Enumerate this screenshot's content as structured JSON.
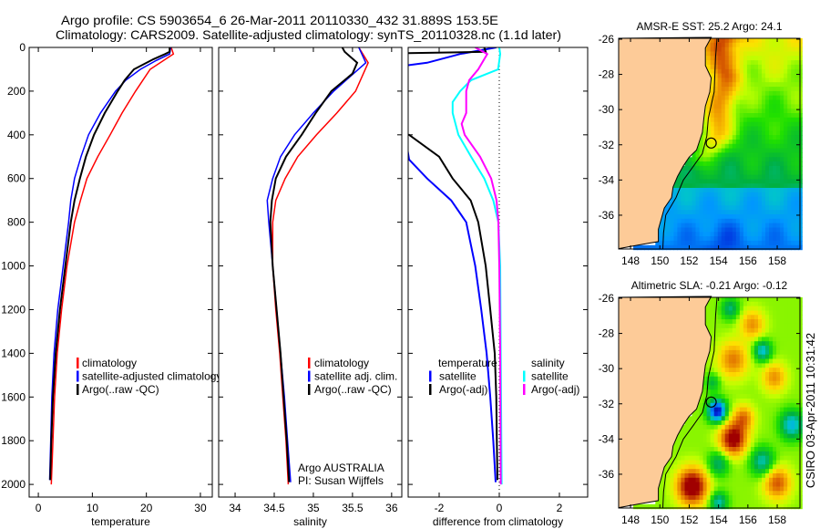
{
  "title": {
    "line1": "Argo profile: CS 5903654_6 26-Mar-2011 20110330_432 31.889S 153.5E",
    "line2": "Climatology: CARS2009. Satellite-adjusted climatology: synTS_20110328.nc (1.1d later)"
  },
  "colors": {
    "climatology": "#ff0000",
    "satellite": "#0000ff",
    "argo": "#000000",
    "salinity_satellite": "#00ffff",
    "salinity_argo": "#ff00ff",
    "land": "#fdcb98",
    "zero_line": "#000000"
  },
  "chart_data": [
    {
      "type": "line",
      "title": "",
      "xlabel": "temperature",
      "ylabel": "",
      "xlim": [
        -1.7,
        32.2
      ],
      "ylim": [
        0,
        2058
      ],
      "y_reversed": true,
      "xticks": [
        "0",
        "10",
        "20",
        "30"
      ],
      "yticks": [
        "0",
        "200",
        "400",
        "600",
        "800",
        "1000",
        "1200",
        "1400",
        "1600",
        "1800",
        "2000"
      ],
      "legend_position": "lower-middle",
      "series": [
        {
          "name": "climatology",
          "color": "#ff0000",
          "depth": [
            0,
            30,
            100,
            200,
            300,
            400,
            500,
            600,
            700,
            800,
            1000,
            1200,
            1400,
            1600,
            1800,
            2000
          ],
          "values": [
            24.6,
            25.0,
            20.7,
            18.0,
            15.5,
            13.3,
            11.0,
            9.0,
            7.8,
            6.7,
            5.3,
            4.3,
            3.5,
            3.0,
            2.7,
            2.4
          ]
        },
        {
          "name": "satellite-adjusted climatology",
          "color": "#0000ff",
          "depth": [
            0,
            30,
            60,
            100,
            150,
            200,
            300,
            400,
            500,
            600,
            700,
            800,
            1000,
            1200,
            1400,
            1600,
            1800,
            1980
          ],
          "values": [
            24.5,
            24.3,
            21.8,
            18.9,
            16.2,
            14.3,
            11.5,
            9.3,
            7.9,
            6.7,
            6.0,
            5.6,
            4.6,
            3.6,
            2.9,
            2.5,
            2.3,
            2.1
          ]
        },
        {
          "name": "Argo(..raw -QC)",
          "color": "#000000",
          "depth": [
            0,
            20,
            30,
            54,
            100,
            150,
            200,
            300,
            400,
            500,
            600,
            700,
            800,
            1000,
            1200,
            1400,
            1600,
            1800,
            1980
          ],
          "values": [
            24.3,
            24.3,
            23.5,
            21.3,
            17.7,
            16.0,
            14.7,
            12.3,
            10.3,
            8.8,
            7.7,
            6.7,
            6.0,
            5.0,
            4.0,
            3.2,
            2.7,
            2.4,
            2.2
          ]
        }
      ]
    },
    {
      "type": "line",
      "title": "",
      "xlabel": "salinity",
      "ylabel": "",
      "xlim": [
        33.79,
        36.13
      ],
      "ylim": [
        0,
        2058
      ],
      "y_reversed": true,
      "xticks": [
        "34",
        "34.5",
        "35",
        "35.5",
        "36"
      ],
      "legend_position": "lower-right",
      "series": [
        {
          "name": "climatology",
          "color": "#ff0000",
          "depth": [
            0,
            70,
            200,
            300,
            400,
            500,
            600,
            700,
            800,
            1000,
            1200,
            1400,
            1600,
            1800,
            2000
          ],
          "values": [
            35.58,
            35.7,
            35.54,
            35.3,
            35.04,
            34.8,
            34.64,
            34.52,
            34.48,
            34.48,
            34.52,
            34.57,
            34.61,
            34.65,
            34.68
          ]
        },
        {
          "name": "satellite adj. clim.",
          "color": "#0000ff",
          "depth": [
            0,
            70,
            200,
            300,
            400,
            500,
            600,
            700,
            800,
            1000,
            1200,
            1400,
            1600,
            1800,
            1990
          ],
          "values": [
            35.58,
            35.67,
            35.26,
            35.0,
            34.76,
            34.58,
            34.48,
            34.41,
            34.43,
            34.48,
            34.53,
            34.58,
            34.63,
            34.67,
            34.71
          ]
        },
        {
          "name": "Argo(..raw -QC)",
          "color": "#000000",
          "depth": [
            0,
            20,
            70,
            120,
            200,
            300,
            400,
            500,
            600,
            700,
            800,
            1000,
            1200,
            1400,
            1600,
            1800,
            1990
          ],
          "values": [
            35.37,
            35.4,
            35.56,
            35.5,
            35.23,
            35.03,
            34.85,
            34.65,
            34.52,
            34.47,
            34.45,
            34.48,
            34.53,
            34.58,
            34.62,
            34.66,
            34.69
          ]
        }
      ],
      "annotation": {
        "line1": "Argo AUSTRALIA",
        "line2": "PI: Susan Wijffels"
      }
    },
    {
      "type": "line",
      "title": "",
      "xlabel": "difference from climatology",
      "ylabel": "",
      "xlim": [
        -3.03,
        2.94
      ],
      "ylim": [
        0,
        2058
      ],
      "y_reversed": true,
      "xticks": [
        "-2",
        "0",
        "2"
      ],
      "zero_line": true,
      "legend_position": "lower-middle",
      "legend_headers": {
        "temperature": "temperature",
        "salinity": "salinity"
      },
      "series": [
        {
          "group": "temperature",
          "name": "satellite",
          "color": "#0000ff",
          "depth": [
            0,
            30,
            70,
            90,
            513,
            600,
            700,
            800,
            1000,
            1200,
            1400,
            1600,
            1800,
            1990
          ],
          "values": [
            -0.1,
            -1.3,
            -2.4,
            -3.5,
            -3.0,
            -2.4,
            -1.6,
            -1.1,
            -0.8,
            -0.6,
            -0.42,
            -0.3,
            -0.2,
            -0.12
          ]
        },
        {
          "group": "temperature",
          "name": "Argo(-adj)",
          "color": "#000000",
          "depth": [
            0,
            20,
            27,
            395,
            400,
            500,
            600,
            700,
            800,
            1000,
            1200,
            1400,
            1600,
            1800,
            1980
          ],
          "values": [
            -0.5,
            -0.45,
            -3.5,
            -3.5,
            -3.0,
            -2.0,
            -1.55,
            -0.95,
            -0.7,
            -0.45,
            -0.3,
            -0.15,
            -0.1,
            -0.08,
            -0.06
          ]
        },
        {
          "group": "salinity",
          "name": "satellite",
          "color": "#00ffff",
          "depth": [
            0,
            30,
            100,
            150,
            200,
            250,
            300,
            400,
            500,
            600,
            700,
            800,
            1000,
            1400,
            2000
          ],
          "values": [
            0,
            0.03,
            -0.04,
            -0.94,
            -1.3,
            -1.55,
            -1.55,
            -1.36,
            -0.94,
            -0.5,
            -0.2,
            -0.03,
            0.03,
            0.05,
            0.08
          ]
        },
        {
          "group": "salinity",
          "name": "Argo(-adj)",
          "color": "#ff00ff",
          "depth": [
            0,
            30,
            100,
            150,
            200,
            300,
            350,
            400,
            500,
            600,
            700,
            800,
            1000,
            1400,
            2000
          ],
          "values": [
            -0.8,
            -0.4,
            -0.7,
            -1.0,
            -1.1,
            -1.1,
            -1.25,
            -1.15,
            -0.64,
            -0.27,
            -0.09,
            -0.03,
            0.0,
            0.03,
            0.05
          ]
        }
      ]
    }
  ],
  "maps": [
    {
      "title": "AMSR-E SST: 25.2 Argo: 24.1",
      "field": "sst",
      "lon_range": [
        147.19,
        159.55
      ],
      "lat_range": [
        -37.92,
        -25.95
      ],
      "xticks": [
        "148",
        "150",
        "152",
        "154",
        "156",
        "158"
      ],
      "yticks": [
        "-26",
        "-28",
        "-30",
        "-32",
        "-34",
        "-36"
      ],
      "argo_position": [
        153.5,
        -31.9
      ]
    },
    {
      "title": "Altimetric SLA: -0.21 Argo: -0.12",
      "field": "sla",
      "lon_range": [
        147.19,
        159.55
      ],
      "lat_range": [
        -37.92,
        -25.95
      ],
      "xticks": [
        "148",
        "150",
        "152",
        "154",
        "156",
        "158"
      ],
      "yticks": [
        "-26",
        "-28",
        "-30",
        "-32",
        "-34",
        "-36"
      ],
      "argo_position": [
        153.5,
        -31.9
      ]
    }
  ],
  "footer": {
    "stamp": "CSIRO 03-Apr-2011 10:31:42"
  }
}
